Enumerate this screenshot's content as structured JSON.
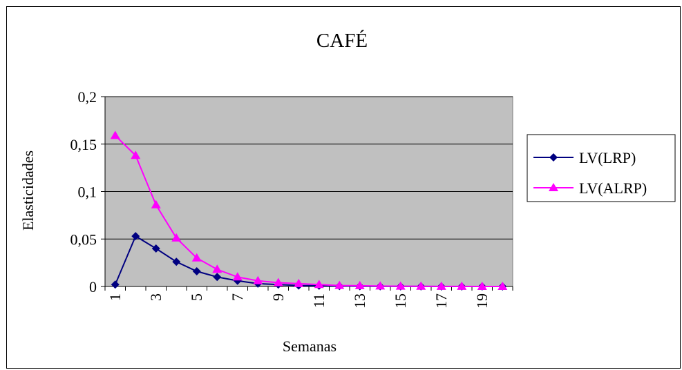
{
  "chart_data": {
    "type": "line",
    "title": "CAFÉ",
    "xlabel": "Semanas",
    "ylabel": "Elasticidades",
    "x": [
      1,
      2,
      3,
      4,
      5,
      6,
      7,
      8,
      9,
      10,
      11,
      12,
      13,
      14,
      15,
      16,
      17,
      18,
      19,
      20
    ],
    "x_tick_labels": [
      "1",
      "3",
      "5",
      "7",
      "9",
      "11",
      "13",
      "15",
      "17",
      "19"
    ],
    "ylim": [
      0,
      0.2
    ],
    "y_ticks": [
      0,
      0.05,
      0.1,
      0.15,
      0.2
    ],
    "y_tick_labels": [
      "0",
      "0,05",
      "0,1",
      "0,15",
      "0,2"
    ],
    "grid": true,
    "plot_background": "#c0c0c0",
    "legend_position": "right",
    "series": [
      {
        "name": "LV(LRP)",
        "color": "#000080",
        "marker": "diamond",
        "values": [
          0.002,
          0.053,
          0.04,
          0.026,
          0.016,
          0.01,
          0.006,
          0.003,
          0.002,
          0.001,
          0.0008,
          0.0005,
          0.0003,
          0.0002,
          0.0001,
          0.0001,
          0,
          0,
          0,
          0
        ]
      },
      {
        "name": "LV(ALRP)",
        "color": "#ff00ff",
        "marker": "triangle",
        "values": [
          0.159,
          0.138,
          0.086,
          0.051,
          0.03,
          0.018,
          0.01,
          0.006,
          0.004,
          0.003,
          0.002,
          0.001,
          0.0008,
          0.0005,
          0.0003,
          0.0002,
          0.0001,
          0.0001,
          0,
          0
        ]
      }
    ]
  }
}
